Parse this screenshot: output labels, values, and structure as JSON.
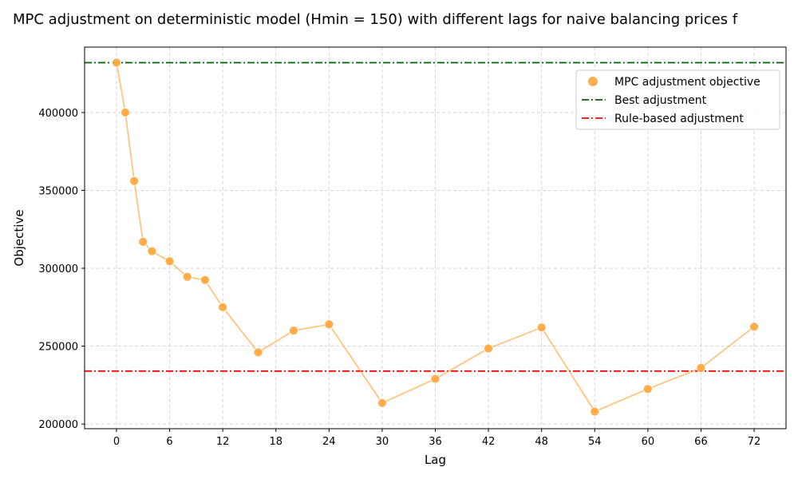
{
  "chart_data": {
    "type": "scatter",
    "title": "MPC adjustment on deterministic model (Hmin = 150) with different lags for naive balancing prices f",
    "xlabel": "Lag",
    "ylabel": "Objective",
    "xlim": [
      -3.6,
      75.6
    ],
    "ylim": [
      197000,
      442000
    ],
    "xticks": [
      0,
      6,
      12,
      18,
      24,
      30,
      36,
      42,
      48,
      54,
      60,
      66,
      72
    ],
    "yticks": [
      200000,
      250000,
      300000,
      350000,
      400000
    ],
    "grid": true,
    "legend_position": "top-right",
    "series": [
      {
        "name": "MPC adjustment objective",
        "kind": "scatter-line",
        "color": "#ffa53a",
        "x": [
          0,
          1,
          2,
          3,
          4,
          6,
          8,
          10,
          12,
          16,
          20,
          24,
          30,
          36,
          42,
          48,
          54,
          60,
          66,
          72
        ],
        "y": [
          432000,
          400000,
          356000,
          317000,
          311000,
          304500,
          294500,
          292500,
          275000,
          246000,
          260000,
          264000,
          213500,
          229000,
          248500,
          262000,
          208000,
          222500,
          236000,
          262500
        ]
      },
      {
        "name": "Best adjustment",
        "kind": "hline",
        "color": "#006400",
        "y": 432000
      },
      {
        "name": "Rule-based adjustment",
        "kind": "hline",
        "color": "#ff0000",
        "y": 234000
      }
    ]
  }
}
